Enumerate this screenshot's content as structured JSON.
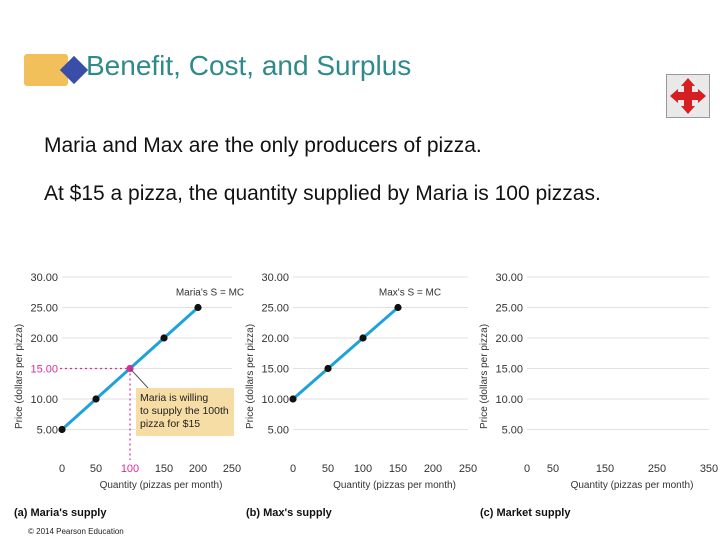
{
  "header": {
    "title": "Benefit, Cost, and Surplus"
  },
  "body": {
    "line1": "Maria and Max are the only producers of pizza.",
    "line2": "At $15 a pizza, the quantity supplied by Maria is 100 pizzas."
  },
  "colors": {
    "title": "#2f8a8a",
    "supply_line": "#1fa2dc",
    "point": "#111111",
    "highlight": "#d62e9a",
    "callout_bg": "#f6dda5"
  },
  "icons": {
    "nav": "four-way-arrows-icon"
  },
  "chart_data": [
    {
      "type": "line",
      "panel_label": "(a) Maria's supply",
      "xlabel": "Quantity (pizzas per month)",
      "ylabel": "Price (dollars per pizza)",
      "xlim": [
        0,
        250
      ],
      "ylim": [
        0,
        30
      ],
      "x_ticks": [
        "0",
        "50",
        "100",
        "150",
        "200",
        "250"
      ],
      "y_ticks": [
        "5.00",
        "10.00",
        "15.00",
        "20.00",
        "25.00",
        "30.00"
      ],
      "series": [
        {
          "name": "Maria's S = MC",
          "x": [
            0,
            50,
            100,
            150,
            200
          ],
          "y": [
            5,
            10,
            15,
            20,
            25
          ]
        }
      ],
      "highlight": {
        "x": 100,
        "y": 15,
        "x_label": "100",
        "y_label": "15.00"
      },
      "annotation": [
        "Maria is willing",
        "to supply the 100th",
        "pizza for $15"
      ]
    },
    {
      "type": "line",
      "panel_label": "(b) Max's supply",
      "xlabel": "Quantity (pizzas per month)",
      "ylabel": "Price (dollars per pizza)",
      "xlim": [
        0,
        250
      ],
      "ylim": [
        0,
        30
      ],
      "x_ticks": [
        "0",
        "50",
        "100",
        "150",
        "200",
        "250"
      ],
      "y_ticks": [
        "5.00",
        "10.00",
        "15.00",
        "20.00",
        "25.00",
        "30.00"
      ],
      "series": [
        {
          "name": "Max's S = MC",
          "x": [
            0,
            50,
            100,
            150
          ],
          "y": [
            10,
            15,
            20,
            25
          ]
        }
      ]
    },
    {
      "type": "line",
      "panel_label": "(c) Market supply",
      "xlabel": "Quantity (pizzas per month)",
      "ylabel": "Price (dollars per pizza)",
      "xlim": [
        0,
        350
      ],
      "ylim": [
        0,
        30
      ],
      "x_ticks": [
        "0",
        "50",
        "150",
        "250",
        "350"
      ],
      "y_ticks": [
        "5.00",
        "10.00",
        "15.00",
        "20.00",
        "25.00",
        "30.00"
      ],
      "series": []
    }
  ],
  "footer": {
    "copyright": "© 2014 Pearson Education"
  }
}
